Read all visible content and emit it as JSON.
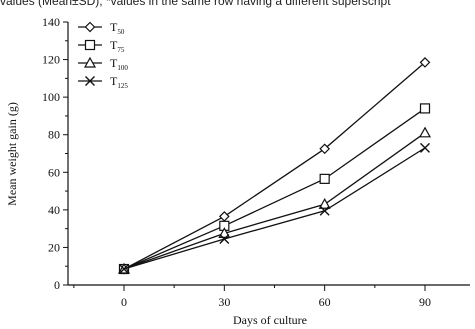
{
  "caption_fragment": "values (Mean±SD); *values in the same row having a different superscript",
  "chart_data": {
    "type": "line",
    "title": "",
    "xlabel": "Days of culture",
    "ylabel": "Mean weight gain (g)",
    "x": [
      0,
      30,
      60,
      90
    ],
    "x_ticks": [
      "0",
      "30",
      "60",
      "90"
    ],
    "ylim": [
      0,
      140
    ],
    "y_ticks": [
      "0",
      "20",
      "40",
      "60",
      "80",
      "100",
      "120",
      "140"
    ],
    "grid": false,
    "legend_position": "top-left",
    "series": [
      {
        "name": "T",
        "sub": "50",
        "marker": "diamond",
        "values": [
          8.5,
          36.5,
          72.5,
          118.5
        ]
      },
      {
        "name": "T",
        "sub": "75",
        "marker": "square",
        "values": [
          8.5,
          31.5,
          56.5,
          94.0
        ]
      },
      {
        "name": "T",
        "sub": "100",
        "marker": "triangle",
        "values": [
          8.5,
          27.5,
          43.0,
          81.0
        ]
      },
      {
        "name": "T",
        "sub": "125",
        "marker": "x",
        "values": [
          8.5,
          24.5,
          39.5,
          73.0
        ]
      }
    ]
  }
}
